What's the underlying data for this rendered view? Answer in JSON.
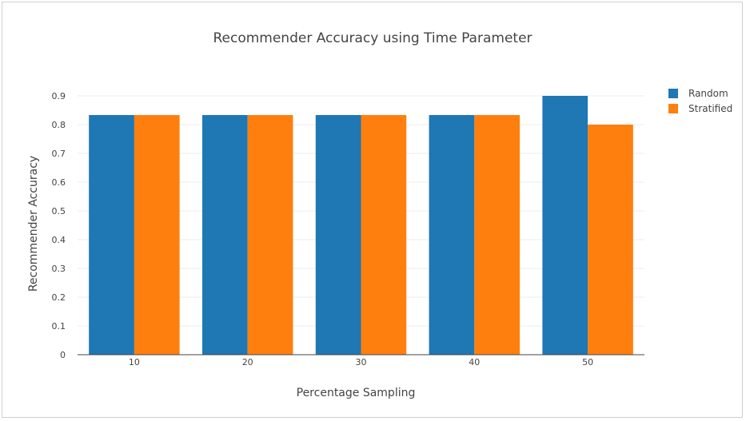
{
  "chart_data": {
    "type": "bar",
    "title": "Recommender Accuracy using Time Parameter",
    "xlabel": "Percentage Sampling",
    "ylabel": "Recommender Accuracy",
    "categories": [
      "10",
      "20",
      "30",
      "40",
      "50"
    ],
    "series": [
      {
        "name": "Random",
        "color": "#1f77b4",
        "values": [
          0.8333,
          0.8333,
          0.8333,
          0.8333,
          0.9
        ]
      },
      {
        "name": "Stratified",
        "color": "#ff7f0e",
        "values": [
          0.8333,
          0.8333,
          0.8333,
          0.8333,
          0.8
        ]
      }
    ],
    "ylim": [
      0,
      0.9
    ],
    "yticks": [
      "0",
      "0.1",
      "0.2",
      "0.3",
      "0.4",
      "0.5",
      "0.6",
      "0.7",
      "0.8",
      "0.9"
    ],
    "grid": true,
    "legend_position": "top-right"
  }
}
